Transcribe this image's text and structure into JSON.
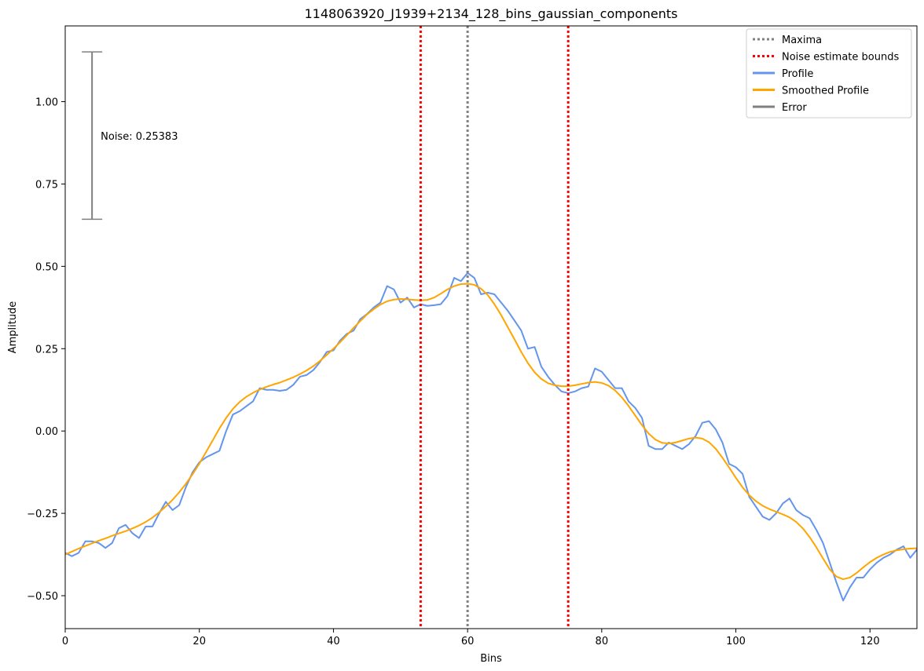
{
  "chart_data": {
    "type": "line",
    "title": "1148063920_J1939+2134_128_bins_gaussian_components",
    "xlabel": "Bins",
    "ylabel": "Amplitude",
    "xlim": [
      0,
      127
    ],
    "ylim": [
      -0.6,
      1.23
    ],
    "xticks": [
      0,
      20,
      40,
      60,
      80,
      100,
      120
    ],
    "xtick_labels": [
      "0",
      "20",
      "40",
      "60",
      "80",
      "100",
      "120"
    ],
    "yticks": [
      -0.5,
      -0.25,
      0.0,
      0.25,
      0.5,
      0.75,
      1.0
    ],
    "ytick_labels": [
      "−0.50",
      "−0.25",
      "0.00",
      "0.25",
      "0.50",
      "0.75",
      "1.00"
    ],
    "grid": false,
    "legend_position": "top-right",
    "legend": [
      {
        "label": "Maxima",
        "color": "#808080",
        "style": "dotted"
      },
      {
        "label": "Noise estimate bounds",
        "color": "#ff0000",
        "style": "dotted"
      },
      {
        "label": "Profile",
        "color": "#6495ed",
        "style": "solid"
      },
      {
        "label": "Smoothed Profile",
        "color": "#ffa500",
        "style": "solid"
      },
      {
        "label": "Error",
        "color": "#808080",
        "style": "solid"
      }
    ],
    "maxima": [
      60
    ],
    "noise_bounds": [
      53,
      75
    ],
    "error_bar": {
      "x": 4,
      "center": 0.897,
      "half_height": 0.254,
      "label": "Noise: 0.25383"
    },
    "series": [
      {
        "name": "Profile",
        "color": "#6495ed",
        "x": [
          0,
          1,
          2,
          3,
          4,
          5,
          6,
          7,
          8,
          9,
          10,
          11,
          12,
          13,
          14,
          15,
          16,
          17,
          18,
          19,
          20,
          21,
          22,
          23,
          24,
          25,
          26,
          27,
          28,
          29,
          30,
          31,
          32,
          33,
          34,
          35,
          36,
          37,
          38,
          39,
          40,
          41,
          42,
          43,
          44,
          45,
          46,
          47,
          48,
          49,
          50,
          51,
          52,
          53,
          54,
          55,
          56,
          57,
          58,
          59,
          60,
          61,
          62,
          63,
          64,
          65,
          66,
          67,
          68,
          69,
          70,
          71,
          72,
          73,
          74,
          75,
          76,
          77,
          78,
          79,
          80,
          81,
          82,
          83,
          84,
          85,
          86,
          87,
          88,
          89,
          90,
          91,
          92,
          93,
          94,
          95,
          96,
          97,
          98,
          99,
          100,
          101,
          102,
          103,
          104,
          105,
          106,
          107,
          108,
          109,
          110,
          111,
          112,
          113,
          114,
          115,
          116,
          117,
          118,
          119,
          120,
          121,
          122,
          123,
          124,
          125,
          126,
          127
        ],
        "y": [
          -0.37,
          -0.38,
          -0.37,
          -0.335,
          -0.335,
          -0.34,
          -0.355,
          -0.34,
          -0.295,
          -0.285,
          -0.31,
          -0.325,
          -0.29,
          -0.29,
          -0.25,
          -0.215,
          -0.24,
          -0.225,
          -0.17,
          -0.125,
          -0.095,
          -0.08,
          -0.07,
          -0.06,
          0.0,
          0.05,
          0.06,
          0.075,
          0.09,
          0.13,
          0.125,
          0.125,
          0.122,
          0.125,
          0.14,
          0.165,
          0.17,
          0.185,
          0.21,
          0.24,
          0.245,
          0.275,
          0.295,
          0.305,
          0.34,
          0.355,
          0.375,
          0.39,
          0.44,
          0.43,
          0.39,
          0.405,
          0.375,
          0.385,
          0.38,
          0.382,
          0.385,
          0.41,
          0.465,
          0.455,
          0.48,
          0.465,
          0.415,
          0.42,
          0.415,
          0.39,
          0.365,
          0.335,
          0.305,
          0.25,
          0.255,
          0.195,
          0.165,
          0.14,
          0.12,
          0.115,
          0.12,
          0.13,
          0.135,
          0.19,
          0.18,
          0.155,
          0.13,
          0.13,
          0.09,
          0.07,
          0.04,
          -0.045,
          -0.055,
          -0.055,
          -0.035,
          -0.045,
          -0.055,
          -0.04,
          -0.015,
          0.025,
          0.03,
          0.005,
          -0.035,
          -0.1,
          -0.11,
          -0.13,
          -0.2,
          -0.23,
          -0.26,
          -0.27,
          -0.25,
          -0.22,
          -0.205,
          -0.24,
          -0.255,
          -0.265,
          -0.3,
          -0.34,
          -0.4,
          -0.46,
          -0.515,
          -0.475,
          -0.445,
          -0.445,
          -0.42,
          -0.4,
          -0.385,
          -0.375,
          -0.36,
          -0.35,
          -0.385,
          -0.36
        ]
      },
      {
        "name": "Smoothed Profile",
        "color": "#ffa500",
        "x": [
          0,
          1,
          2,
          3,
          4,
          5,
          6,
          7,
          8,
          9,
          10,
          11,
          12,
          13,
          14,
          15,
          16,
          17,
          18,
          19,
          20,
          21,
          22,
          23,
          24,
          25,
          26,
          27,
          28,
          29,
          30,
          31,
          32,
          33,
          34,
          35,
          36,
          37,
          38,
          39,
          40,
          41,
          42,
          43,
          44,
          45,
          46,
          47,
          48,
          49,
          50,
          51,
          52,
          53,
          54,
          55,
          56,
          57,
          58,
          59,
          60,
          61,
          62,
          63,
          64,
          65,
          66,
          67,
          68,
          69,
          70,
          71,
          72,
          73,
          74,
          75,
          76,
          77,
          78,
          79,
          80,
          81,
          82,
          83,
          84,
          85,
          86,
          87,
          88,
          89,
          90,
          91,
          92,
          93,
          94,
          95,
          96,
          97,
          98,
          99,
          100,
          101,
          102,
          103,
          104,
          105,
          106,
          107,
          108,
          109,
          110,
          111,
          112,
          113,
          114,
          115,
          116,
          117,
          118,
          119,
          120,
          121,
          122,
          123,
          124,
          125,
          126,
          127
        ],
        "y": [
          -0.375,
          -0.366,
          -0.357,
          -0.349,
          -0.341,
          -0.333,
          -0.326,
          -0.318,
          -0.311,
          -0.304,
          -0.296,
          -0.287,
          -0.276,
          -0.263,
          -0.247,
          -0.229,
          -0.209,
          -0.186,
          -0.16,
          -0.131,
          -0.099,
          -0.064,
          -0.028,
          0.008,
          0.04,
          0.067,
          0.088,
          0.104,
          0.116,
          0.126,
          0.134,
          0.141,
          0.147,
          0.155,
          0.163,
          0.173,
          0.184,
          0.197,
          0.213,
          0.231,
          0.25,
          0.27,
          0.291,
          0.313,
          0.334,
          0.354,
          0.37,
          0.384,
          0.394,
          0.399,
          0.401,
          0.4,
          0.398,
          0.397,
          0.398,
          0.405,
          0.417,
          0.43,
          0.44,
          0.446,
          0.447,
          0.444,
          0.432,
          0.413,
          0.385,
          0.352,
          0.315,
          0.278,
          0.24,
          0.206,
          0.178,
          0.158,
          0.145,
          0.139,
          0.136,
          0.136,
          0.139,
          0.143,
          0.147,
          0.149,
          0.146,
          0.138,
          0.123,
          0.102,
          0.076,
          0.047,
          0.018,
          -0.008,
          -0.026,
          -0.036,
          -0.038,
          -0.035,
          -0.029,
          -0.023,
          -0.02,
          -0.023,
          -0.034,
          -0.054,
          -0.081,
          -0.111,
          -0.142,
          -0.171,
          -0.195,
          -0.213,
          -0.227,
          -0.237,
          -0.245,
          -0.253,
          -0.262,
          -0.276,
          -0.296,
          -0.322,
          -0.353,
          -0.387,
          -0.42,
          -0.442,
          -0.45,
          -0.445,
          -0.431,
          -0.414,
          -0.398,
          -0.385,
          -0.375,
          -0.367,
          -0.362,
          -0.359,
          -0.357,
          -0.356
        ]
      }
    ]
  }
}
